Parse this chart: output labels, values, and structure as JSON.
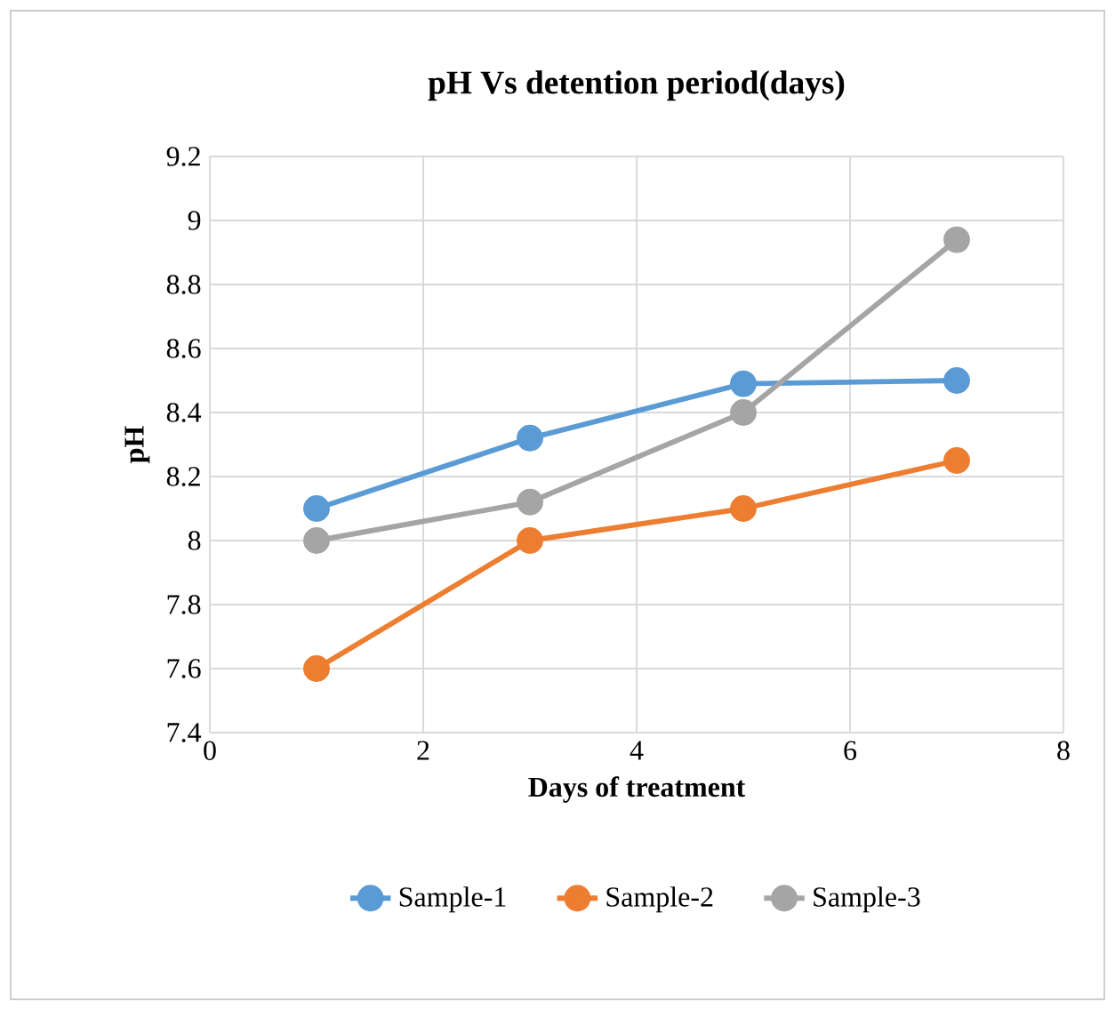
{
  "chart_data": {
    "type": "line",
    "title": "pH Vs detention period(days)",
    "xlabel": "Days of treatment",
    "ylabel": "pH",
    "x": [
      1,
      3,
      5,
      7
    ],
    "series": [
      {
        "name": "Sample-1",
        "color": "#5b9bd5",
        "values": [
          8.1,
          8.32,
          8.49,
          8.5
        ]
      },
      {
        "name": "Sample-2",
        "color": "#ed7d31",
        "values": [
          7.6,
          8.0,
          8.1,
          8.25
        ]
      },
      {
        "name": "Sample-3",
        "color": "#a5a5a5",
        "values": [
          8.0,
          8.12,
          8.4,
          8.94
        ]
      }
    ],
    "xlim": [
      0,
      8
    ],
    "xticks": [
      0,
      2,
      4,
      6,
      8
    ],
    "ylim": [
      7.4,
      9.2
    ],
    "yticks": [
      7.4,
      7.6,
      7.8,
      8,
      8.2,
      8.4,
      8.6,
      8.8,
      9,
      9.2
    ],
    "grid": true,
    "legend": "bottom",
    "marker": "circle",
    "line_style": "solid"
  }
}
